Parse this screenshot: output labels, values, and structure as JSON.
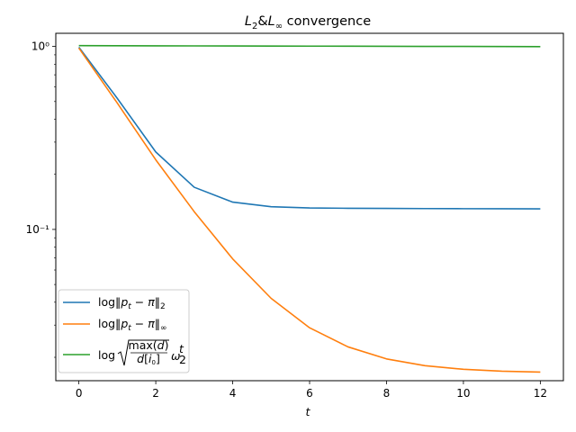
{
  "chart_data": {
    "type": "line",
    "title": "L2&L∞ convergence",
    "xlabel": "t",
    "ylabel": "",
    "yscale": "log",
    "xlim": [
      -0.6,
      12.6
    ],
    "ylim": [
      0.0149,
      1.18
    ],
    "x_ticks": [
      0,
      2,
      4,
      6,
      8,
      10,
      12
    ],
    "x_tick_labels": [
      "0",
      "2",
      "4",
      "6",
      "8",
      "10",
      "12"
    ],
    "y_ticks": [
      1,
      0.1
    ],
    "y_tick_labels": [
      "10⁰",
      "10⁻¹"
    ],
    "grid": false,
    "legend_position": "lower-left",
    "x": [
      0,
      1,
      2,
      3,
      4,
      5,
      6,
      7,
      8,
      9,
      10,
      11,
      12
    ],
    "series": [
      {
        "name": "log‖p_t − π‖_2",
        "color": "#1f77b4",
        "values": [
          0.99,
          0.52,
          0.265,
          0.17,
          0.141,
          0.133,
          0.131,
          0.1305,
          0.1302,
          0.13,
          0.1298,
          0.1297,
          0.1296
        ]
      },
      {
        "name": "log‖p_t − π‖_∞",
        "color": "#ff7f0e",
        "values": [
          0.98,
          0.49,
          0.24,
          0.125,
          0.069,
          0.042,
          0.029,
          0.0228,
          0.0196,
          0.018,
          0.0172,
          0.0168,
          0.0166
        ]
      },
      {
        "name": "log√(max(d)/d[i0]) ω2^t",
        "color": "#2ca02c",
        "values": [
          1.01,
          1.009,
          1.008,
          1.007,
          1.006,
          1.005,
          1.004,
          1.003,
          1.002,
          1.001,
          1.0,
          0.999,
          0.998
        ]
      }
    ]
  }
}
